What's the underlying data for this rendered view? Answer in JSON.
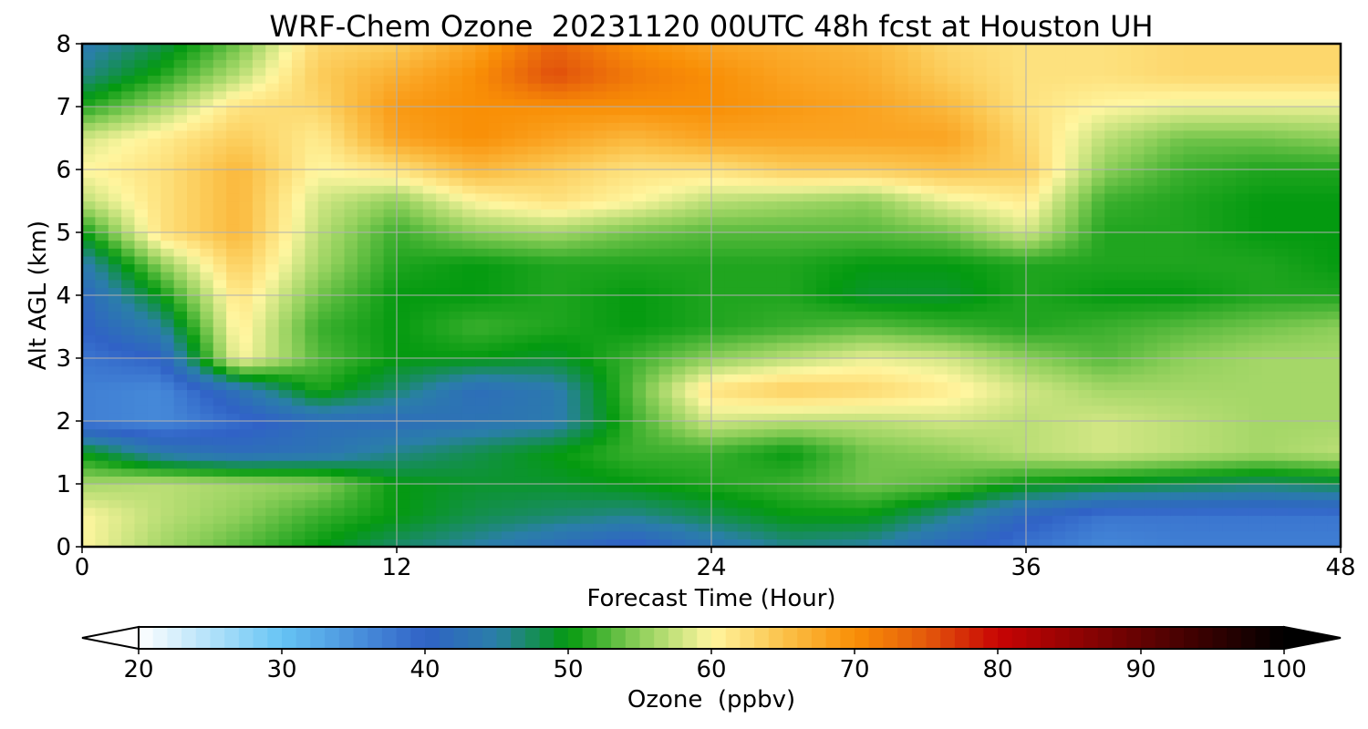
{
  "chart_data": {
    "type": "heatmap",
    "title": "WRF-Chem Ozone  20231120 00UTC 48h fcst at Houston UH",
    "xlabel": "Forecast Time (Hour)",
    "ylabel": "Alt AGL (km)",
    "xlim": [
      0,
      48
    ],
    "ylim": [
      0,
      8
    ],
    "x_ticks": [
      0,
      12,
      24,
      36,
      48
    ],
    "y_ticks": [
      0,
      1,
      2,
      3,
      4,
      5,
      6,
      7,
      8
    ],
    "grid": true,
    "x_hours": [
      0,
      3,
      6,
      9,
      12,
      15,
      18,
      21,
      24,
      27,
      30,
      33,
      36,
      39,
      42,
      45,
      48
    ],
    "alt_km": [
      0,
      0.5,
      1,
      1.5,
      2,
      2.5,
      3,
      3.5,
      4,
      4.5,
      5,
      5.5,
      6,
      6.5,
      7,
      7.5,
      8
    ],
    "ozone_ppbv": [
      [
        60,
        56,
        53,
        50,
        47,
        45,
        42,
        39,
        43,
        46,
        45,
        41,
        38,
        36,
        37,
        37,
        37
      ],
      [
        60,
        57,
        55,
        52,
        50,
        48,
        47,
        46,
        48,
        50,
        50,
        46,
        41,
        38,
        38,
        38,
        38
      ],
      [
        56,
        57,
        56,
        55,
        50,
        49,
        49,
        50,
        51,
        52,
        54,
        53,
        50,
        49,
        48,
        47,
        48
      ],
      [
        50,
        44,
        42,
        43,
        46,
        48,
        50,
        52,
        52,
        50,
        54,
        55,
        57,
        58,
        57,
        56,
        57
      ],
      [
        37,
        36,
        39,
        42,
        42,
        43,
        44,
        52,
        58,
        57,
        57,
        58,
        57,
        58,
        57,
        56,
        56
      ],
      [
        37,
        36,
        43,
        51,
        47,
        42,
        44,
        53,
        62,
        64,
        63,
        61,
        58,
        56,
        56,
        56,
        56
      ],
      [
        38,
        40,
        60,
        53,
        50,
        50,
        49,
        52,
        55,
        57,
        59,
        58,
        55,
        53,
        55,
        56,
        56
      ],
      [
        40,
        45,
        61,
        52,
        50,
        52,
        51,
        50,
        51,
        52,
        53,
        52,
        51,
        52,
        53,
        54,
        55
      ],
      [
        41,
        50,
        62,
        54,
        50,
        50,
        51,
        50,
        51,
        51,
        49,
        49,
        51,
        50,
        50,
        51,
        51
      ],
      [
        44,
        55,
        64,
        56,
        51,
        50,
        51,
        51,
        51,
        51,
        50,
        50,
        51,
        51,
        51,
        51,
        50
      ],
      [
        50,
        62,
        66,
        57,
        52,
        55,
        56,
        54,
        53,
        53,
        53,
        54,
        58,
        51,
        51,
        50,
        50
      ],
      [
        57,
        62,
        66,
        58,
        55,
        60,
        62,
        60,
        57,
        56,
        55,
        59,
        61,
        52,
        51,
        50,
        50
      ],
      [
        60,
        62,
        66,
        60,
        62,
        66,
        64,
        62,
        62,
        64,
        64,
        65,
        64,
        55,
        52,
        51,
        51
      ],
      [
        58,
        61,
        64,
        61,
        68,
        70,
        68,
        66,
        68,
        68,
        68,
        68,
        63,
        57,
        54,
        54,
        55
      ],
      [
        51,
        56,
        62,
        63,
        69,
        70,
        70,
        70,
        70,
        69,
        68,
        66,
        62,
        60,
        59,
        59,
        59
      ],
      [
        46,
        51,
        57,
        64,
        67,
        70,
        76,
        72,
        70,
        68,
        67,
        64,
        62,
        62,
        63,
        63,
        63
      ],
      [
        44,
        48,
        54,
        63,
        64,
        68,
        74,
        70,
        68,
        67,
        66,
        63,
        62,
        62,
        63,
        63,
        63
      ]
    ],
    "colorbar": {
      "label": "Ozone  (ppbv)",
      "range": [
        20,
        100
      ],
      "ticks": [
        20,
        30,
        40,
        50,
        60,
        70,
        80,
        90,
        100
      ],
      "extend": "both",
      "color_stops": [
        {
          "v": 20,
          "c": "#ffffff"
        },
        {
          "v": 30,
          "c": "#66c4f4"
        },
        {
          "v": 40,
          "c": "#3062c6"
        },
        {
          "v": 45,
          "c": "#2a7fa8"
        },
        {
          "v": 50,
          "c": "#049a10"
        },
        {
          "v": 55,
          "c": "#8ecf5a"
        },
        {
          "v": 60,
          "c": "#fff6a0"
        },
        {
          "v": 65,
          "c": "#fbc24a"
        },
        {
          "v": 70,
          "c": "#f98f06"
        },
        {
          "v": 75,
          "c": "#e45a0c"
        },
        {
          "v": 80,
          "c": "#c80404"
        },
        {
          "v": 90,
          "c": "#640202"
        },
        {
          "v": 100,
          "c": "#000000"
        }
      ],
      "under_color": "#ffffff",
      "over_color": "#000000"
    }
  }
}
